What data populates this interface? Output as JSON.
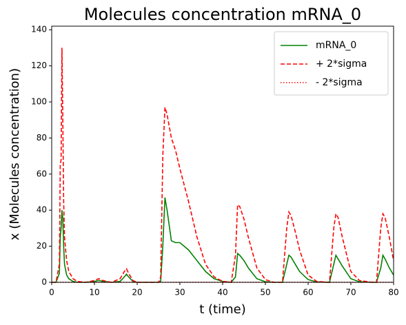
{
  "chart_data": {
    "type": "line",
    "title": "Molecules concentration mRNA_0",
    "xlabel": "t (time)",
    "ylabel": "x (Molecules concentration)",
    "x": [
      0,
      1,
      1.8,
      2.0,
      2.2,
      2.4,
      2.6,
      2.8,
      3.0,
      3.5,
      4,
      5,
      6,
      8,
      10,
      11,
      12,
      14,
      16,
      17,
      17.5,
      18,
      19,
      20,
      22,
      25,
      25.5,
      26,
      26.5,
      27,
      28,
      29,
      30,
      32,
      34,
      36,
      38,
      40,
      42,
      43,
      43.5,
      44,
      45,
      46,
      48,
      50,
      52,
      54,
      55,
      55.5,
      56,
      57,
      58,
      60,
      62,
      65,
      66,
      66.5,
      67,
      68,
      70,
      72,
      75,
      76,
      77,
      77.5,
      78,
      79,
      80
    ],
    "series": [
      {
        "name": "mRNA_0",
        "color": "#008000",
        "style": "solid",
        "values": [
          0,
          0,
          5,
          25,
          30,
          40,
          35,
          20,
          10,
          4,
          2,
          0.5,
          0,
          0,
          0.5,
          1,
          0.5,
          0,
          0.5,
          3,
          4.5,
          3,
          0.5,
          0,
          0,
          0,
          0.5,
          20,
          47,
          40,
          23,
          22,
          22,
          18,
          12,
          6,
          2,
          0.5,
          0,
          3,
          16,
          15,
          12,
          8,
          2,
          0.3,
          0,
          0,
          10,
          15,
          14,
          10,
          6,
          1.5,
          0.2,
          0,
          10,
          15,
          13,
          9,
          2,
          0.3,
          0,
          0,
          8,
          15,
          13,
          8,
          4
        ]
      },
      {
        "name": "+ 2*sigma",
        "color": "#ff0000",
        "style": "dashed",
        "values": [
          0,
          0,
          10,
          65,
          68,
          130,
          90,
          45,
          25,
          12,
          6,
          2,
          0.5,
          0,
          1,
          2,
          1,
          0,
          2,
          6,
          7.5,
          5,
          1,
          0,
          0,
          0,
          3,
          70,
          97,
          93,
          80,
          73,
          63,
          45,
          25,
          10,
          3,
          0.5,
          0,
          15,
          43,
          42,
          35,
          25,
          8,
          1.5,
          0,
          0,
          30,
          39,
          37,
          28,
          18,
          4,
          0.5,
          0,
          30,
          38,
          36,
          25,
          6,
          1,
          0,
          0,
          30,
          38,
          36,
          25,
          12
        ]
      },
      {
        "name": "- 2*sigma",
        "color": "#ff0000",
        "style": "dotted",
        "values": [
          0,
          0,
          0,
          0,
          0,
          0,
          0,
          0,
          0,
          0,
          0,
          0,
          0,
          0,
          0,
          0,
          0,
          0,
          0,
          0,
          0,
          0,
          0,
          0,
          0,
          0,
          0,
          0,
          0,
          0,
          0,
          0,
          0,
          0,
          0,
          0,
          0,
          0,
          0,
          0,
          0,
          0,
          0,
          0,
          0,
          0,
          0,
          0,
          0,
          0,
          0,
          0,
          0,
          0,
          0,
          0,
          0,
          0,
          0,
          0,
          0,
          0,
          0,
          0,
          0,
          0,
          0,
          0,
          0
        ]
      }
    ],
    "xlim": [
      0,
      80
    ],
    "xticks": [
      0,
      10,
      20,
      30,
      40,
      50,
      60,
      70,
      80
    ],
    "ylim": [
      0,
      142
    ],
    "yticks": [
      0,
      20,
      40,
      60,
      80,
      100,
      120,
      140
    ],
    "legend": "upper right",
    "grid": false
  }
}
